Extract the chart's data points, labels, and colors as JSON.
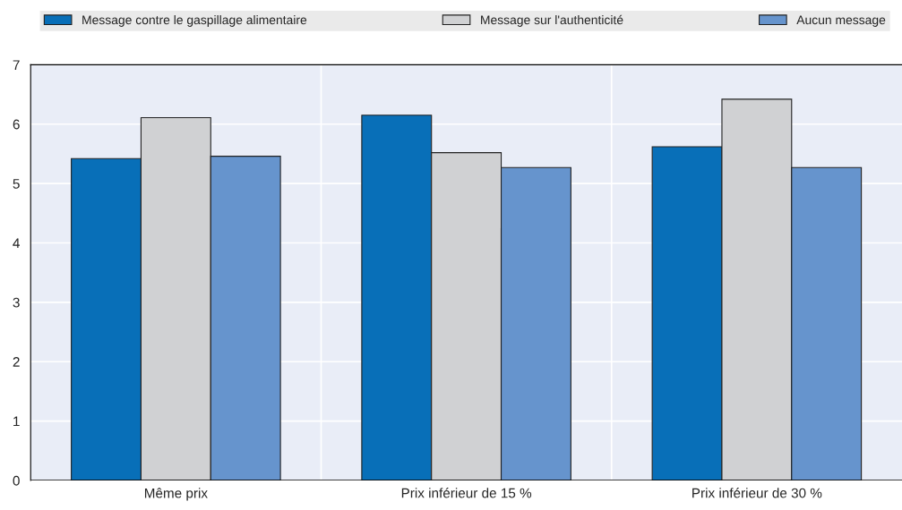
{
  "chart_data": {
    "type": "bar",
    "categories": [
      "Même prix",
      "Prix inférieur de 15 %",
      "Prix inférieur de 30 %"
    ],
    "series": [
      {
        "name": "Message contre le gaspillage alimentaire",
        "color": "#086fb8",
        "values": [
          5.42,
          6.15,
          5.62
        ]
      },
      {
        "name": "Message sur l'authenticité",
        "color": "#d0d1d3",
        "values": [
          6.11,
          5.52,
          6.42
        ]
      },
      {
        "name": "Aucun message",
        "color": "#6694cd",
        "values": [
          5.46,
          5.27,
          5.27
        ]
      }
    ],
    "ylim": [
      0,
      7
    ],
    "yticks": [
      0,
      1,
      2,
      3,
      4,
      5,
      6,
      7
    ],
    "grid": true,
    "legend": "top"
  }
}
